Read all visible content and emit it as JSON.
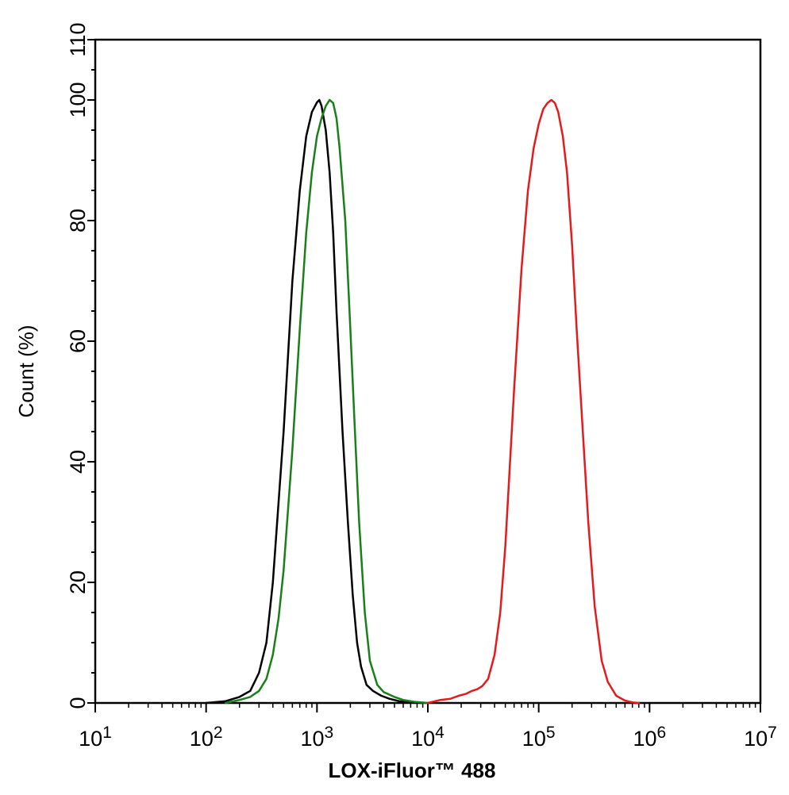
{
  "chart_data": {
    "type": "line",
    "title": "",
    "xlabel": "LOX-iFluor™ 488",
    "ylabel": "Count (%)",
    "x_scale": "log",
    "xlim": [
      10,
      10000000
    ],
    "ylim": [
      0,
      110
    ],
    "x_ticks": [
      {
        "value": 10,
        "base": "10",
        "exp": "1"
      },
      {
        "value": 100,
        "base": "10",
        "exp": "2"
      },
      {
        "value": 1000,
        "base": "10",
        "exp": "3"
      },
      {
        "value": 10000,
        "base": "10",
        "exp": "4"
      },
      {
        "value": 100000,
        "base": "10",
        "exp": "5"
      },
      {
        "value": 1000000,
        "base": "10",
        "exp": "6"
      },
      {
        "value": 10000000,
        "base": "10",
        "exp": "7"
      }
    ],
    "y_ticks": [
      "0",
      "20",
      "40",
      "60",
      "80",
      "100",
      "110"
    ],
    "grid": false,
    "series": [
      {
        "color": "#000000",
        "points": [
          [
            100,
            0
          ],
          [
            150,
            0.3
          ],
          [
            200,
            1
          ],
          [
            250,
            2
          ],
          [
            300,
            5
          ],
          [
            350,
            10
          ],
          [
            400,
            20
          ],
          [
            500,
            45
          ],
          [
            600,
            70
          ],
          [
            700,
            85
          ],
          [
            800,
            94
          ],
          [
            900,
            98
          ],
          [
            1000,
            99.6
          ],
          [
            1050,
            100
          ],
          [
            1100,
            99
          ],
          [
            1200,
            95
          ],
          [
            1300,
            88
          ],
          [
            1400,
            78
          ],
          [
            1500,
            65
          ],
          [
            1700,
            45
          ],
          [
            1900,
            30
          ],
          [
            2100,
            18
          ],
          [
            2300,
            10
          ],
          [
            2500,
            6
          ],
          [
            2800,
            3
          ],
          [
            3200,
            2
          ],
          [
            3800,
            1.2
          ],
          [
            4500,
            0.7
          ],
          [
            5500,
            0.3
          ],
          [
            7000,
            0.1
          ],
          [
            9000,
            0
          ]
        ]
      },
      {
        "color": "#1a7f1a",
        "points": [
          [
            150,
            0
          ],
          [
            200,
            0.5
          ],
          [
            250,
            1
          ],
          [
            300,
            2
          ],
          [
            350,
            4
          ],
          [
            400,
            8
          ],
          [
            450,
            14
          ],
          [
            500,
            22
          ],
          [
            600,
            42
          ],
          [
            700,
            62
          ],
          [
            800,
            78
          ],
          [
            900,
            88
          ],
          [
            1000,
            94
          ],
          [
            1100,
            97
          ],
          [
            1200,
            99
          ],
          [
            1300,
            100
          ],
          [
            1400,
            99.5
          ],
          [
            1500,
            97
          ],
          [
            1600,
            92
          ],
          [
            1800,
            80
          ],
          [
            2000,
            62
          ],
          [
            2200,
            45
          ],
          [
            2400,
            30
          ],
          [
            2700,
            15
          ],
          [
            3000,
            7
          ],
          [
            3500,
            3
          ],
          [
            4000,
            1.8
          ],
          [
            5000,
            1
          ],
          [
            6000,
            0.5
          ],
          [
            7500,
            0.2
          ],
          [
            10000,
            0
          ]
        ]
      },
      {
        "color": "#e41a1c",
        "points": [
          [
            10000,
            0
          ],
          [
            13000,
            0.5
          ],
          [
            16000,
            0.7
          ],
          [
            19000,
            1.2
          ],
          [
            22000,
            1.5
          ],
          [
            25000,
            2
          ],
          [
            28000,
            2.3
          ],
          [
            31000,
            2.8
          ],
          [
            35000,
            4
          ],
          [
            40000,
            8
          ],
          [
            45000,
            15
          ],
          [
            50000,
            26
          ],
          [
            60000,
            52
          ],
          [
            70000,
            72
          ],
          [
            80000,
            85
          ],
          [
            90000,
            92
          ],
          [
            100000,
            96
          ],
          [
            110000,
            98.5
          ],
          [
            120000,
            99.5
          ],
          [
            130000,
            100
          ],
          [
            140000,
            99.5
          ],
          [
            150000,
            98
          ],
          [
            165000,
            94
          ],
          [
            180000,
            88
          ],
          [
            200000,
            76
          ],
          [
            220000,
            62
          ],
          [
            250000,
            45
          ],
          [
            280000,
            30
          ],
          [
            320000,
            16
          ],
          [
            370000,
            7
          ],
          [
            420000,
            3.5
          ],
          [
            500000,
            1.2
          ],
          [
            600000,
            0.4
          ],
          [
            700000,
            0.1
          ],
          [
            800000,
            0
          ]
        ]
      }
    ]
  }
}
